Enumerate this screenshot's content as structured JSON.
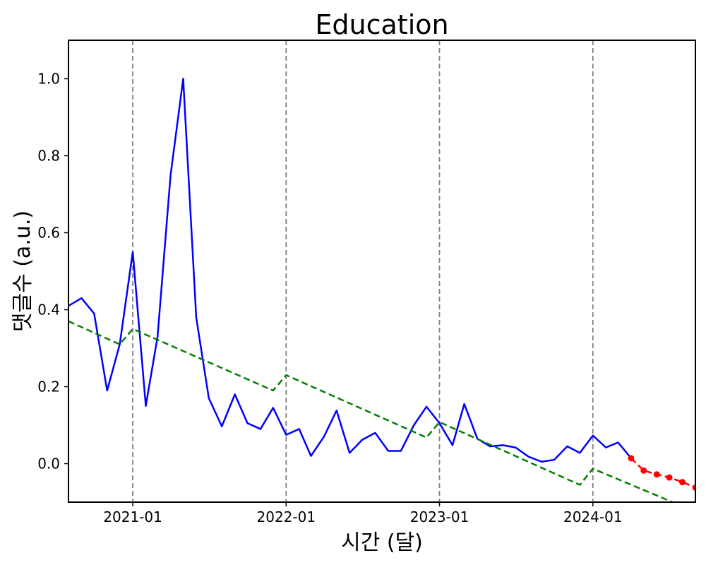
{
  "chart_data": {
    "type": "line",
    "title": "Education",
    "xlabel": "시간 (달)",
    "ylabel": "댓글수 (a.u.)",
    "xlim": [
      "2020-08-01",
      "2024-09-01"
    ],
    "ylim": [
      -0.1,
      1.1
    ],
    "x_ticks": [
      "2021-01",
      "2022-01",
      "2023-01",
      "2024-01"
    ],
    "y_ticks": [
      0.0,
      0.2,
      0.4,
      0.6,
      0.8,
      1.0
    ],
    "y_tick_labels": [
      "0.0",
      "0.2",
      "0.4",
      "0.6",
      "0.8",
      "1.0"
    ],
    "vertical_lines": [
      "2021-01-01",
      "2022-01-01",
      "2023-01-01",
      "2024-01-01"
    ],
    "grid": false,
    "colors": {
      "actual": "#0000ff",
      "trend": "#008000",
      "forecast": "#ff0000",
      "vlines": "#808080"
    },
    "series": [
      {
        "style": "solid",
        "color": "#0000ff",
        "x": [
          "2020-08-01",
          "2020-09-01",
          "2020-10-01",
          "2020-11-01",
          "2020-12-01",
          "2021-01-01",
          "2021-02-01",
          "2021-03-01",
          "2021-04-01",
          "2021-05-01",
          "2021-06-01",
          "2021-07-01",
          "2021-08-01",
          "2021-09-01",
          "2021-10-01",
          "2021-11-01",
          "2021-12-01",
          "2022-01-01",
          "2022-02-01",
          "2022-03-01",
          "2022-04-01",
          "2022-05-01",
          "2022-06-01",
          "2022-07-01",
          "2022-08-01",
          "2022-09-01",
          "2022-10-01",
          "2022-11-01",
          "2022-12-01",
          "2023-01-01",
          "2023-02-01",
          "2023-03-01",
          "2023-04-01",
          "2023-05-01",
          "2023-06-01",
          "2023-07-01",
          "2023-08-01",
          "2023-09-01",
          "2023-10-01",
          "2023-11-01",
          "2023-12-01",
          "2024-01-01",
          "2024-02-01",
          "2024-03-01",
          "2024-04-01"
        ],
        "values": [
          0.41,
          0.43,
          0.39,
          0.19,
          0.31,
          0.55,
          0.15,
          0.33,
          0.75,
          1.0,
          0.38,
          0.17,
          0.097,
          0.18,
          0.105,
          0.09,
          0.145,
          0.075,
          0.09,
          0.02,
          0.07,
          0.138,
          0.028,
          0.062,
          0.08,
          0.033,
          0.033,
          0.1,
          0.148,
          0.105,
          0.048,
          0.155,
          0.065,
          0.045,
          0.048,
          0.042,
          0.018,
          0.005,
          0.01,
          0.045,
          0.028,
          0.073,
          0.042,
          0.055,
          0.014
        ]
      },
      {
        "style": "dashed",
        "color": "#008000",
        "x": [
          "2020-08-01",
          "2020-12-01",
          "2021-01-01",
          "2021-12-01",
          "2022-01-01",
          "2022-12-01",
          "2023-01-01",
          "2023-12-01",
          "2024-01-01",
          "2024-09-01"
        ],
        "values": [
          0.37,
          0.31,
          0.35,
          0.19,
          0.23,
          0.068,
          0.108,
          -0.055,
          -0.013,
          -0.125
        ]
      },
      {
        "style": "dashed-markers",
        "color": "#ff0000",
        "x": [
          "2024-04-01",
          "2024-05-01",
          "2024-06-01",
          "2024-07-01",
          "2024-08-01",
          "2024-09-01"
        ],
        "values": [
          0.014,
          -0.018,
          -0.028,
          -0.036,
          -0.048,
          -0.062
        ]
      }
    ]
  }
}
